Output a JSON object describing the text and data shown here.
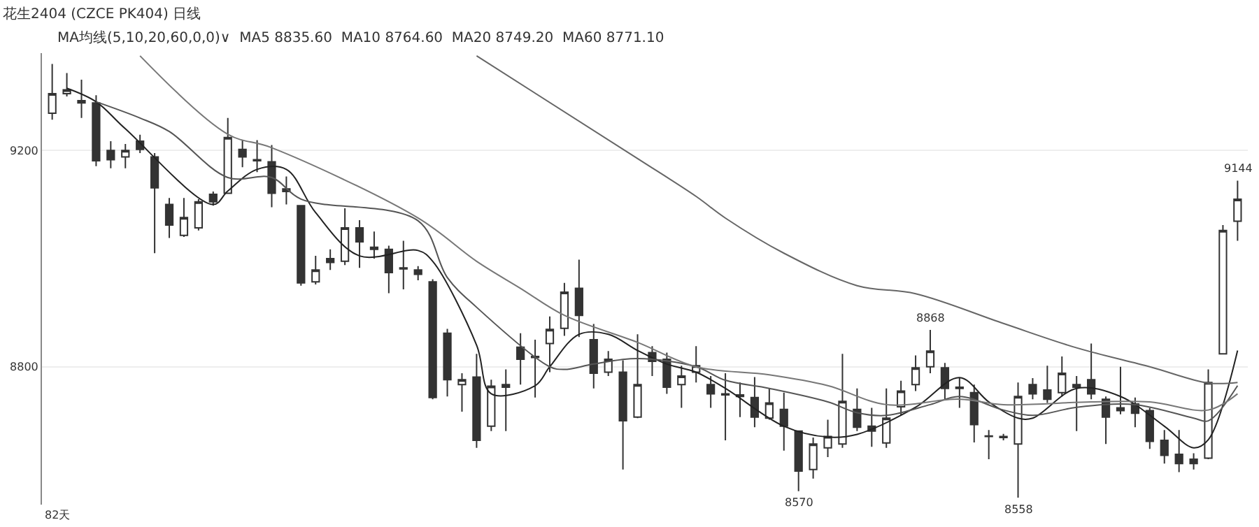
{
  "chart_data": {
    "type": "candlestick",
    "title": "花生2404 (CZCE PK404) 日线",
    "subtitle": "MA均线(5,10,20,60,0,0)∨  MA5 8835.60  MA10 8764.60  MA20 8749.20  MA60 8771.10",
    "categories": [
      null,
      null,
      null,
      null,
      null,
      null,
      null,
      null,
      null,
      null,
      null,
      null,
      null,
      null,
      null,
      null,
      null,
      null,
      null,
      null,
      null,
      null,
      null,
      null,
      null,
      null,
      null,
      null,
      null,
      null,
      null,
      null,
      null,
      null,
      null,
      null,
      null,
      null,
      null,
      null,
      null,
      null,
      null,
      null,
      null,
      null,
      null,
      null,
      null,
      null,
      null,
      null,
      null,
      null,
      null,
      null,
      null,
      null,
      null,
      null,
      null,
      null,
      null,
      null,
      null,
      null,
      null,
      null,
      null,
      null,
      null,
      null,
      null,
      null,
      null,
      null,
      null,
      null,
      null,
      null,
      null,
      null
    ],
    "ohlc": [
      [
        9269,
        9360,
        9257,
        9305
      ],
      [
        9305,
        9343,
        9300,
        9312
      ],
      [
        9292,
        9331,
        9260,
        9288
      ],
      [
        9288,
        9302,
        9171,
        9181
      ],
      [
        9200,
        9217,
        9167,
        9183
      ],
      [
        9188,
        9212,
        9167,
        9200
      ],
      [
        9217,
        9229,
        9195,
        9202
      ],
      [
        9188,
        9195,
        9010,
        9131
      ],
      [
        9100,
        9112,
        9038,
        9062
      ],
      [
        9043,
        9112,
        9040,
        9076
      ],
      [
        9057,
        9110,
        9052,
        9105
      ],
      [
        9119,
        9124,
        9098,
        9105
      ],
      [
        9121,
        9260,
        9121,
        9224
      ],
      [
        9202,
        9219,
        9169,
        9188
      ],
      [
        9183,
        9219,
        9160,
        9181
      ],
      [
        9179,
        9210,
        9095,
        9121
      ],
      [
        9129,
        9152,
        9100,
        9124
      ],
      [
        9098,
        9098,
        8950,
        8955
      ],
      [
        8957,
        9005,
        8952,
        8979
      ],
      [
        9000,
        9017,
        8979,
        8993
      ],
      [
        8995,
        9093,
        8988,
        9057
      ],
      [
        9057,
        9071,
        8983,
        9031
      ],
      [
        9021,
        9050,
        9000,
        9017
      ],
      [
        9017,
        9024,
        8936,
        8974
      ],
      [
        8983,
        9033,
        8943,
        8981
      ],
      [
        8979,
        8986,
        8960,
        8971
      ],
      [
        8957,
        8962,
        8740,
        8743
      ],
      [
        8862,
        8870,
        8745,
        8776
      ],
      [
        8767,
        8788,
        8717,
        8776
      ],
      [
        8781,
        8824,
        8650,
        8664
      ],
      [
        8690,
        8776,
        8681,
        8764
      ],
      [
        8762,
        8795,
        8681,
        8767
      ],
      [
        8836,
        8862,
        8767,
        8814
      ],
      [
        8819,
        8850,
        8743,
        8817
      ],
      [
        8843,
        8893,
        8790,
        8869
      ],
      [
        8871,
        8955,
        8857,
        8938
      ],
      [
        8945,
        8998,
        8855,
        8895
      ],
      [
        8850,
        8879,
        8760,
        8788
      ],
      [
        8790,
        8829,
        8783,
        8814
      ],
      [
        8790,
        8812,
        8610,
        8700
      ],
      [
        8707,
        8860,
        8705,
        8767
      ],
      [
        8826,
        8838,
        8783,
        8810
      ],
      [
        8814,
        8826,
        8750,
        8762
      ],
      [
        8767,
        8802,
        8724,
        8783
      ],
      [
        8790,
        8838,
        8771,
        8802
      ],
      [
        8767,
        8783,
        8724,
        8750
      ],
      [
        8750,
        8788,
        8664,
        8748
      ],
      [
        8745,
        8771,
        8707,
        8748
      ],
      [
        8743,
        8781,
        8688,
        8707
      ],
      [
        8705,
        8760,
        8702,
        8733
      ],
      [
        8721,
        8752,
        8645,
        8690
      ],
      [
        8681,
        8681,
        8570,
        8607
      ],
      [
        8610,
        8669,
        8593,
        8657
      ],
      [
        8650,
        8702,
        8633,
        8671
      ],
      [
        8657,
        8824,
        8650,
        8736
      ],
      [
        8721,
        8760,
        8681,
        8688
      ],
      [
        8690,
        8724,
        8652,
        8681
      ],
      [
        8659,
        8760,
        8650,
        8705
      ],
      [
        8726,
        8774,
        8710,
        8755
      ],
      [
        8767,
        8821,
        8755,
        8798
      ],
      [
        8800,
        8868,
        8788,
        8829
      ],
      [
        8798,
        8807,
        8740,
        8760
      ],
      [
        8762,
        8779,
        8724,
        8760
      ],
      [
        8752,
        8767,
        8660,
        8693
      ],
      [
        8672,
        8683,
        8629,
        8671
      ],
      [
        8671,
        8676,
        8664,
        8669
      ],
      [
        8657,
        8771,
        8558,
        8745
      ],
      [
        8767,
        8779,
        8740,
        8750
      ],
      [
        8757,
        8802,
        8733,
        8740
      ],
      [
        8752,
        8819,
        8745,
        8788
      ],
      [
        8762,
        8783,
        8681,
        8767
      ],
      [
        8776,
        8843,
        8740,
        8750
      ],
      [
        8740,
        8745,
        8657,
        8707
      ],
      [
        8719,
        8800,
        8712,
        8724
      ],
      [
        8731,
        8743,
        8688,
        8714
      ],
      [
        8719,
        8724,
        8648,
        8662
      ],
      [
        8664,
        8683,
        8621,
        8636
      ],
      [
        8638,
        8683,
        8605,
        8621
      ],
      [
        8629,
        8640,
        8610,
        8621
      ],
      [
        8631,
        8795,
        8629,
        8771
      ],
      [
        8824,
        9062,
        8824,
        9052
      ],
      [
        9069,
        9144,
        9033,
        9110
      ]
    ],
    "color": "#333333",
    "series": [
      {
        "type": "line",
        "color": "#222222",
        "values": [
          null,
          9315,
          null,
          9290,
          null,
          9240,
          null,
          null,
          null,
          null,
          null,
          9100,
          9125,
          null,
          9165,
          null,
          9165,
          null,
          9085,
          null,
          null,
          9005,
          null,
          null,
          null,
          9015,
          8995,
          null,
          null,
          8840,
          8750,
          null,
          null,
          8765,
          8800,
          null,
          8860,
          null,
          8860,
          null,
          8830,
          null,
          8805,
          null,
          8790,
          null,
          8760,
          null,
          null,
          null,
          8690,
          null,
          null,
          8670,
          null,
          8675,
          null,
          null,
          null,
          8725,
          null,
          null,
          8780,
          null,
          8735,
          null,
          8705,
          8705,
          null,
          null,
          8760,
          null,
          null,
          8745,
          null,
          null,
          8690,
          null,
          8650,
          8665,
          null,
          8830
        ]
      },
      {
        "type": "line",
        "color": "#555555",
        "values": [
          null,
          null,
          null,
          9290,
          null,
          null,
          9260,
          null,
          9235,
          null,
          null,
          null,
          9150,
          null,
          null,
          9150,
          null,
          9110,
          null,
          null,
          null,
          null,
          null,
          null,
          null,
          9070,
          null,
          8965,
          null,
          8910,
          null,
          null,
          null,
          null,
          8800,
          8795,
          null,
          8805,
          null,
          null,
          8815,
          null,
          null,
          null,
          8800,
          null,
          8775,
          null,
          null,
          8760,
          null,
          null,
          null,
          8735,
          null,
          8715,
          null,
          8710,
          null,
          null,
          8730,
          null,
          8745,
          null,
          null,
          8720,
          null,
          8710,
          null,
          null,
          8725,
          null,
          null,
          null,
          8730,
          null,
          null,
          null,
          8705,
          8700,
          null,
          8765
        ]
      },
      {
        "type": "line",
        "color": "#777777",
        "values": [
          null,
          null,
          null,
          null,
          null,
          null,
          9375,
          null,
          null,
          null,
          null,
          null,
          9230,
          null,
          null,
          9205,
          null,
          null,
          null,
          null,
          null,
          null,
          null,
          null,
          null,
          9075,
          null,
          null,
          null,
          8995,
          null,
          null,
          8945,
          null,
          null,
          8895,
          null,
          null,
          null,
          null,
          8845,
          null,
          null,
          null,
          8800,
          null,
          null,
          null,
          null,
          8785,
          null,
          null,
          null,
          8765,
          null,
          null,
          null,
          8730,
          null,
          null,
          null,
          null,
          8740,
          null,
          null,
          8730,
          null,
          null,
          null,
          null,
          null,
          8735,
          null,
          null,
          null,
          8735,
          null,
          null,
          null,
          8720,
          null,
          8750
        ]
      },
      {
        "type": "line",
        "color": "#666666",
        "values": [
          null,
          null,
          null,
          null,
          null,
          null,
          null,
          null,
          null,
          null,
          null,
          null,
          null,
          null,
          null,
          null,
          null,
          null,
          null,
          null,
          null,
          null,
          null,
          null,
          null,
          null,
          null,
          null,
          null,
          9375,
          null,
          null,
          null,
          null,
          null,
          null,
          null,
          null,
          null,
          null,
          9185,
          null,
          null,
          null,
          9115,
          null,
          9075,
          null,
          null,
          null,
          9010,
          null,
          null,
          null,
          null,
          8950,
          null,
          null,
          null,
          8935,
          null,
          null,
          null,
          null,
          null,
          8880,
          null,
          null,
          null,
          null,
          8835,
          null,
          null,
          null,
          null,
          8800,
          null,
          null,
          null,
          8770,
          null,
          8771
        ]
      }
    ],
    "ylim": [
      8545,
      9380
    ],
    "yticks": [
      8800,
      9200
    ],
    "grid": "y",
    "tick_labels": "y",
    "annotations": [
      {
        "text": "8570",
        "y": 8570
      },
      {
        "text": "8868",
        "y": 8868
      },
      {
        "text": "8558",
        "y": 8558
      },
      {
        "text": "9144",
        "y": 9144
      },
      "82天"
    ]
  }
}
